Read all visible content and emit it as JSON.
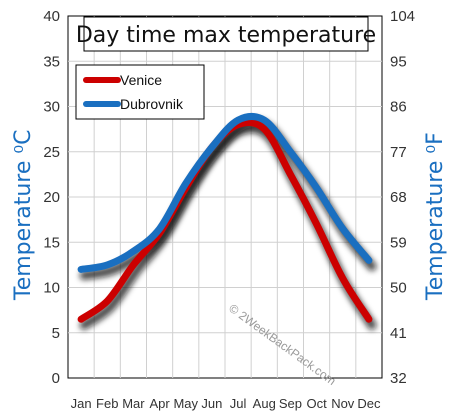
{
  "chart_data": {
    "type": "line",
    "title": "Day time max temperature",
    "ylabel_left": "Temperature ⁰C",
    "ylabel_right": "Temperature ⁰F",
    "categories": [
      "Jan",
      "Feb",
      "Mar",
      "Apr",
      "May",
      "Jun",
      "Jul",
      "Aug",
      "Sep",
      "Oct",
      "Nov",
      "Dec"
    ],
    "ylim": [
      0,
      40
    ],
    "yticks_left": [
      "0",
      "5",
      "10",
      "15",
      "20",
      "25",
      "30",
      "35",
      "40"
    ],
    "yticks_right": [
      "32",
      "41",
      "50",
      "59",
      "68",
      "77",
      "86",
      "95",
      "104"
    ],
    "series": [
      {
        "name": "Venice",
        "color": "#cc0000",
        "values": [
          6.5,
          8.5,
          12.5,
          16,
          21,
          25.5,
          28,
          27.5,
          22.5,
          17,
          11,
          6.5
        ]
      },
      {
        "name": "Dubrovnik",
        "color": "#1a6fc0",
        "values": [
          12,
          12.5,
          14,
          16.5,
          21.5,
          25.5,
          28.5,
          28.5,
          25,
          21,
          16.5,
          13
        ]
      }
    ],
    "grid": true,
    "legend_position": "top-left",
    "watermark": "© 2WeekBackPack.com"
  }
}
